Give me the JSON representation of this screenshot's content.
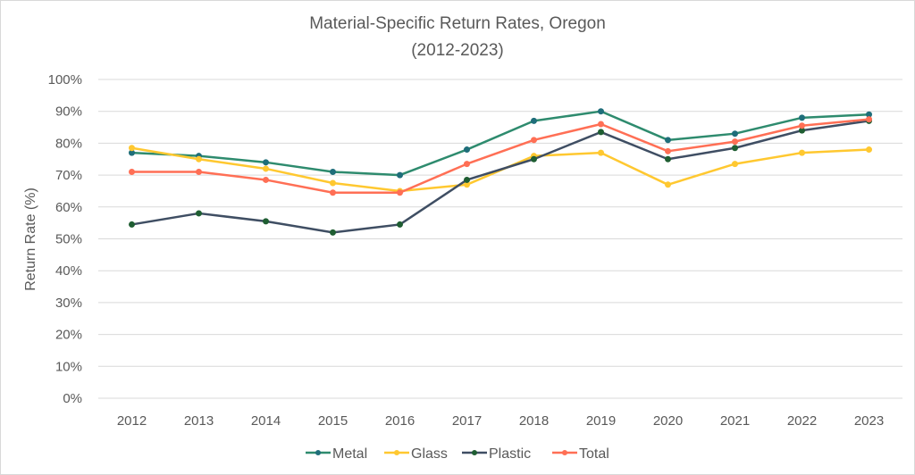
{
  "chart_data": {
    "type": "line",
    "title": "Material-Specific Return Rates, Oregon",
    "subtitle": "(2012-2023)",
    "xlabel": "",
    "ylabel": "Return Rate (%)",
    "x": [
      "2012",
      "2013",
      "2014",
      "2015",
      "2016",
      "2017",
      "2018",
      "2019",
      "2020",
      "2021",
      "2022",
      "2023"
    ],
    "ylim": [
      0,
      100
    ],
    "yticks": [
      "0%",
      "10%",
      "20%",
      "30%",
      "40%",
      "50%",
      "60%",
      "70%",
      "80%",
      "90%",
      "100%"
    ],
    "grid": true,
    "legend_position": "bottom",
    "series": [
      {
        "name": "Metal",
        "line_color": "#2e8b6e",
        "marker_color": "#1f6e7a",
        "values": [
          77,
          76,
          74,
          71,
          70,
          78,
          87,
          90,
          81,
          83,
          88,
          89
        ]
      },
      {
        "name": "Glass",
        "line_color": "#ffc830",
        "marker_color": "#ffc830",
        "values": [
          78.5,
          75,
          72,
          67.5,
          65,
          67,
          76,
          77,
          67,
          73.5,
          77,
          78
        ]
      },
      {
        "name": "Plastic",
        "line_color": "#3f4e63",
        "marker_color": "#1f5e32",
        "values": [
          54.5,
          58,
          55.5,
          52,
          54.5,
          68.5,
          75,
          83.5,
          75,
          78.5,
          84,
          87
        ]
      },
      {
        "name": "Total",
        "line_color": "#ff6f55",
        "marker_color": "#ff6f55",
        "values": [
          71,
          71,
          68.5,
          64.5,
          64.5,
          73.5,
          81,
          86,
          77.5,
          80.5,
          85.5,
          87.5
        ]
      }
    ]
  }
}
